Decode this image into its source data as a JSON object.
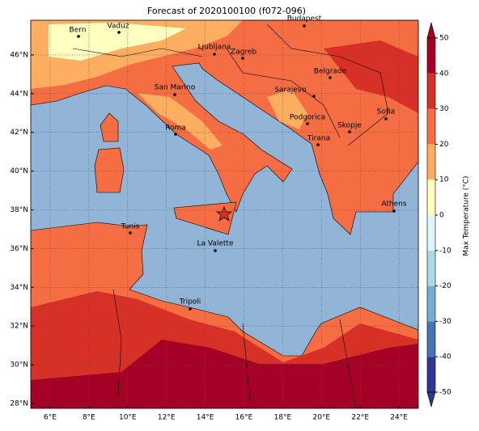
{
  "title": "Forecast of 2020100100 (f072-096)",
  "cities": [
    "Bern",
    "Vaduz",
    "Budapest",
    "Ljubljana",
    "Zagreb",
    "Belgrade",
    "San Marino",
    "Sarajevo",
    "Sofia",
    "Podgorica",
    "Roma",
    "Skopje",
    "Tirana",
    "Athens",
    "Tunis",
    "La Valette",
    "Tripoli"
  ],
  "lon_ticks": [
    "6°E",
    "8°E",
    "10°E",
    "12°E",
    "14°E",
    "16°E",
    "18°E",
    "20°E",
    "22°E",
    "24°E"
  ],
  "lat_ticks": [
    "28°N",
    "30°N",
    "32°N",
    "34°N",
    "36°N",
    "38°N",
    "40°N",
    "42°N",
    "44°N",
    "46°N"
  ],
  "colorbar": {
    "label": "Max Temperature (°C)",
    "ticks": [
      -50,
      -40,
      -30,
      -20,
      -10,
      0,
      10,
      20,
      30,
      40,
      50
    ],
    "colors": [
      "#313695",
      "#4575b4",
      "#74add1",
      "#abd9e9",
      "#e0f3f8",
      "#ffffbf",
      "#fdae61",
      "#f46d43",
      "#d73027",
      "#a50026"
    ]
  }
}
